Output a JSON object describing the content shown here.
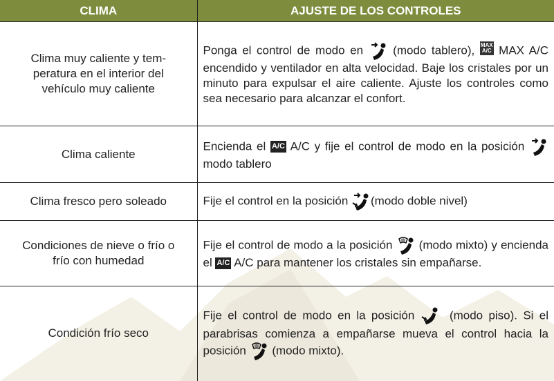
{
  "table": {
    "header": [
      "CLIMA",
      "AJUSTE DE LOS CONTROLES"
    ],
    "badges": {
      "max": [
        "MAX",
        "A/C"
      ],
      "ac": "A/C"
    },
    "rows": [
      [
        "Clima muy caliente y tem-peratura en el interior del vehículo muy caliente",
        [
          "Ponga el control de modo en ",
          " (modo tablero), ",
          " MAX A/C encendido y ventilador en alta velocidad. Baje los cristales por un minuto para expulsar el aire caliente. Ajuste los controles como sea necesario para alcanzar el confort."
        ]
      ],
      [
        "Clima caliente",
        [
          "Encienda el ",
          " A/C  y fije el control de modo en la posición ",
          " modo tablero"
        ]
      ],
      [
        "Clima fresco pero soleado",
        [
          "Fije el control en la posición ",
          "(modo doble nivel)"
        ]
      ],
      [
        "Condiciones de nieve o frío o frío con humedad",
        [
          "Fije el control de modo a la posición ",
          " (modo mixto) y encienda el ",
          " A/C para mantener los cristales sin empañarse."
        ]
      ],
      [
        "Condición frío seco",
        [
          "Fije el control de modo en la posición ",
          " (modo piso). Si el parabrisas comienza a empañarse mueva el control hacia la posición ",
          " (modo mixto)."
        ]
      ]
    ]
  }
}
